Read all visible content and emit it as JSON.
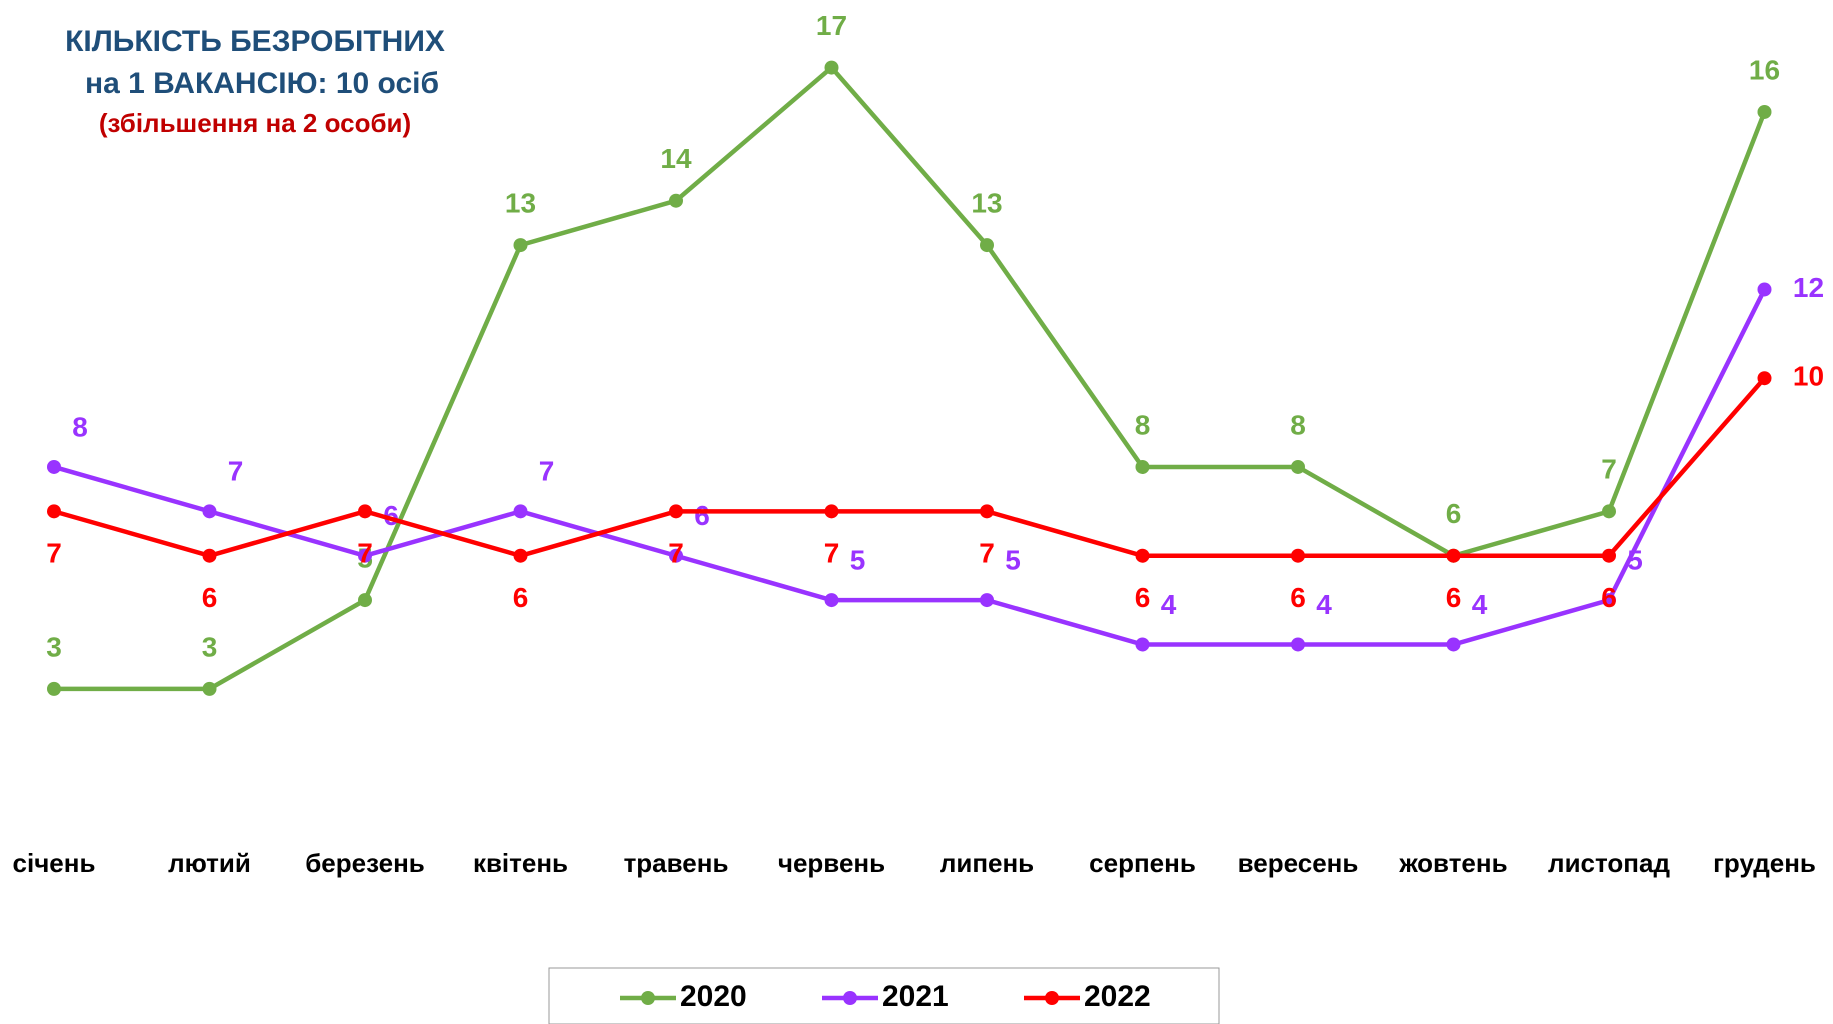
{
  "chart_data": {
    "type": "line",
    "title": [
      "КІЛЬКІСТЬ БЕЗРОБІТНИХ",
      "на 1 ВАКАНСІЮ: 10 осіб"
    ],
    "subtitle": "(збільшення на 2 особи)",
    "categories": [
      "січень",
      "лютий",
      "березень",
      "квітень",
      "травень",
      "червень",
      "липень",
      "серпень",
      "вересень",
      "жовтень",
      "листопад",
      "грудень"
    ],
    "series": [
      {
        "name": "2020",
        "color": "#70ad47",
        "values": [
          3,
          3,
          5,
          13,
          14,
          17,
          13,
          8,
          8,
          6,
          7,
          16
        ]
      },
      {
        "name": "2021",
        "color": "#9933ff",
        "values": [
          8,
          7,
          6,
          7,
          6,
          5,
          5,
          4,
          4,
          4,
          5,
          12
        ]
      },
      {
        "name": "2022",
        "color": "#ff0000",
        "values": [
          7,
          6,
          7,
          6,
          7,
          7,
          7,
          6,
          6,
          6,
          6,
          10
        ]
      }
    ],
    "ylim": [
      0,
      18.5
    ],
    "legend": "bottom"
  }
}
